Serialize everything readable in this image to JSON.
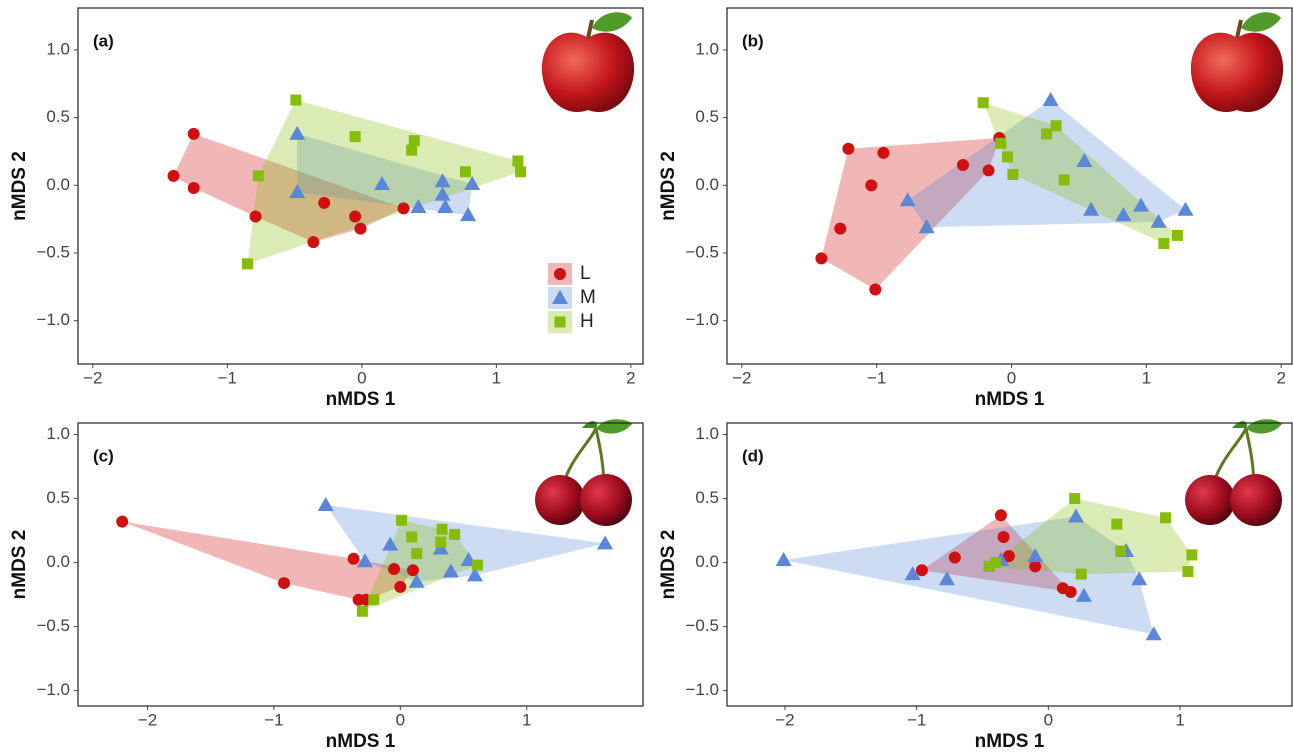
{
  "chart_data": [
    {
      "type": "scatter",
      "panel_label": "(a)",
      "x_label": "nMDS 1",
      "y_label": "nMDS 2",
      "legend": "lower right",
      "xlim": [
        -2.11,
        2.09
      ],
      "ylim": [
        -1.32,
        1.31
      ],
      "xticks": [
        {
          "value": -2,
          "label": "−2"
        },
        {
          "value": -1,
          "label": "−1"
        },
        0,
        1,
        2
      ],
      "yticks": [
        {
          "value": -1,
          "label": "−1.0"
        },
        {
          "value": -0.5,
          "label": "−0.5"
        },
        {
          "value": 0,
          "label": "0.0"
        },
        0.5,
        {
          "value": 1,
          "label": "1.0"
        }
      ],
      "series": [
        {
          "name": "L",
          "color": "#d0100f",
          "marker": "circle",
          "x": [
            -1.4,
            -1.25,
            -1.25,
            -0.79,
            -0.28,
            -0.05,
            -0.01,
            -0.36,
            0.31
          ],
          "y": [
            0.07,
            0.38,
            -0.02,
            -0.23,
            -0.13,
            -0.23,
            -0.32,
            -0.42,
            -0.17
          ]
        },
        {
          "name": "M",
          "color": "#5a87d8",
          "marker": "triangle",
          "x": [
            -0.48,
            -0.48,
            0.15,
            0.42,
            0.6,
            0.62,
            0.79,
            0.82,
            0.6
          ],
          "y": [
            0.38,
            -0.05,
            0.01,
            -0.16,
            0.03,
            -0.16,
            -0.22,
            0.01,
            -0.07
          ]
        },
        {
          "name": "H",
          "color": "#86bc0c",
          "marker": "square",
          "x": [
            -0.49,
            -0.77,
            -0.85,
            -0.05,
            0.39,
            0.37,
            0.77,
            1.16,
            1.18
          ],
          "y": [
            0.63,
            0.07,
            -0.58,
            0.36,
            0.33,
            0.26,
            0.1,
            0.18,
            0.1
          ]
        }
      ]
    },
    {
      "type": "scatter",
      "panel_label": "(b)",
      "x_label": "nMDS 1",
      "y_label": "nMDS 2",
      "xlim": [
        -2.11,
        2.08
      ],
      "ylim": [
        -1.32,
        1.31
      ],
      "xticks": [
        {
          "value": -2,
          "label": "−2"
        },
        {
          "value": -1,
          "label": "−1"
        },
        0,
        1,
        2
      ],
      "yticks": [
        {
          "value": -1,
          "label": "−1.0"
        },
        {
          "value": -0.5,
          "label": "−0.5"
        },
        {
          "value": 0,
          "label": "0.0"
        },
        0.5,
        {
          "value": 1,
          "label": "1.0"
        }
      ],
      "series": [
        {
          "name": "L",
          "color": "#d0100f",
          "marker": "circle",
          "x": [
            -1.41,
            -1.27,
            -1.21,
            -1.04,
            -1.01,
            -0.95,
            -0.36,
            -0.17,
            -0.09
          ],
          "y": [
            -0.54,
            -0.32,
            0.27,
            0.0,
            -0.77,
            0.24,
            0.15,
            0.11,
            0.35
          ]
        },
        {
          "name": "M",
          "color": "#5a87d8",
          "marker": "triangle",
          "x": [
            -0.77,
            -0.63,
            0.29,
            0.54,
            0.59,
            0.83,
            0.96,
            1.09,
            1.29
          ],
          "y": [
            -0.11,
            -0.31,
            0.63,
            0.18,
            -0.18,
            -0.22,
            -0.15,
            -0.27,
            -0.18
          ]
        },
        {
          "name": "H",
          "color": "#86bc0c",
          "marker": "square",
          "x": [
            -0.21,
            -0.08,
            -0.03,
            0.01,
            0.26,
            0.33,
            0.39,
            1.13,
            1.23
          ],
          "y": [
            0.61,
            0.31,
            0.21,
            0.08,
            0.38,
            0.44,
            0.04,
            -0.43,
            -0.37
          ]
        }
      ]
    },
    {
      "type": "scatter",
      "panel_label": "(c)",
      "x_label": "nMDS 1",
      "y_label": "nMDS 2",
      "xlim": [
        -2.55,
        1.92
      ],
      "ylim": [
        -1.12,
        1.09
      ],
      "xticks": [
        {
          "value": -2,
          "label": "−2"
        },
        {
          "value": -1,
          "label": "−1"
        },
        0,
        1
      ],
      "yticks": [
        {
          "value": -1,
          "label": "−1.0"
        },
        {
          "value": -0.5,
          "label": "−0.5"
        },
        {
          "value": 0,
          "label": "0.0"
        },
        0.5,
        {
          "value": 1,
          "label": "1.0"
        }
      ],
      "series": [
        {
          "name": "L",
          "color": "#d0100f",
          "marker": "circle",
          "x": [
            -2.2,
            -0.92,
            -0.37,
            -0.33,
            -0.27,
            -0.05,
            0.0,
            0.1
          ],
          "y": [
            0.32,
            -0.16,
            0.03,
            -0.29,
            -0.29,
            -0.05,
            -0.19,
            -0.06
          ]
        },
        {
          "name": "M",
          "color": "#5a87d8",
          "marker": "triangle",
          "x": [
            -0.59,
            -0.28,
            -0.08,
            0.13,
            0.32,
            0.4,
            0.54,
            0.59,
            1.62
          ],
          "y": [
            0.45,
            0.01,
            0.14,
            -0.15,
            0.11,
            -0.07,
            0.02,
            -0.1,
            0.15
          ]
        },
        {
          "name": "H",
          "color": "#86bc0c",
          "marker": "square",
          "x": [
            -0.3,
            -0.21,
            0.01,
            0.09,
            0.13,
            0.33,
            0.43,
            0.32,
            0.61
          ],
          "y": [
            -0.38,
            -0.29,
            0.33,
            0.2,
            0.07,
            0.26,
            0.22,
            0.16,
            -0.02
          ]
        }
      ]
    },
    {
      "type": "scatter",
      "panel_label": "(d)",
      "x_label": "nMDS 1",
      "y_label": "nMDS 2",
      "xlim": [
        -2.44,
        1.85
      ],
      "ylim": [
        -1.12,
        1.09
      ],
      "xticks": [
        {
          "value": -2,
          "label": "−2"
        },
        {
          "value": -1,
          "label": "−1"
        },
        0,
        1
      ],
      "yticks": [
        {
          "value": -1,
          "label": "−1.0"
        },
        {
          "value": -0.5,
          "label": "−0.5"
        },
        {
          "value": 0,
          "label": "0.0"
        },
        0.5,
        {
          "value": 1,
          "label": "1.0"
        }
      ],
      "series": [
        {
          "name": "L",
          "color": "#d0100f",
          "marker": "circle",
          "x": [
            -0.96,
            -0.71,
            -0.36,
            -0.34,
            -0.3,
            -0.1,
            0.11,
            0.17
          ],
          "y": [
            -0.06,
            0.04,
            0.37,
            0.2,
            0.05,
            -0.03,
            -0.2,
            -0.23
          ]
        },
        {
          "name": "M",
          "color": "#5a87d8",
          "marker": "triangle",
          "x": [
            -2.01,
            -1.03,
            -0.77,
            -0.36,
            -0.1,
            0.21,
            0.27,
            0.59,
            0.69,
            0.8
          ],
          "y": [
            0.02,
            -0.09,
            -0.13,
            0.02,
            0.05,
            0.36,
            -0.26,
            0.09,
            -0.13,
            -0.56
          ]
        },
        {
          "name": "H",
          "color": "#86bc0c",
          "marker": "square",
          "x": [
            -0.45,
            -0.4,
            0.2,
            0.25,
            0.52,
            0.55,
            0.89,
            1.06,
            1.09
          ],
          "y": [
            -0.03,
            0.0,
            0.5,
            -0.09,
            0.3,
            0.09,
            0.35,
            -0.07,
            0.06
          ]
        }
      ]
    }
  ]
}
